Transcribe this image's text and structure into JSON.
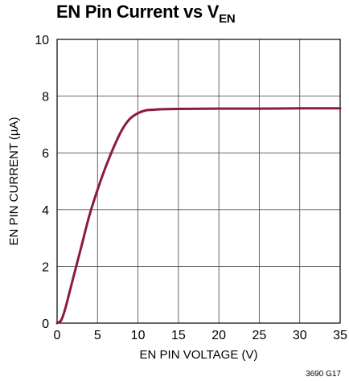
{
  "chart_data": {
    "type": "line",
    "title_main": "EN Pin Current vs V",
    "title_sub": "EN",
    "xlabel": "EN PIN VOLTAGE (V)",
    "ylabel": "EN PIN CURRENT (µA)",
    "xlim": [
      0,
      35
    ],
    "ylim": [
      0,
      10
    ],
    "xticks": [
      0,
      5,
      10,
      15,
      20,
      25,
      30,
      35
    ],
    "yticks": [
      0,
      2,
      4,
      6,
      8,
      10
    ],
    "grid": true,
    "series": [
      {
        "color": "#8b1a3c",
        "x": [
          0,
          0.5,
          1,
          2,
          3,
          4,
          5,
          6,
          7,
          8,
          9,
          10,
          11,
          12,
          13,
          15,
          20,
          25,
          30,
          35
        ],
        "y": [
          0,
          0.1,
          0.5,
          1.6,
          2.7,
          3.8,
          4.7,
          5.5,
          6.2,
          6.8,
          7.2,
          7.4,
          7.5,
          7.52,
          7.54,
          7.55,
          7.56,
          7.56,
          7.57,
          7.57
        ]
      }
    ],
    "figure_code": "3690 G17"
  }
}
